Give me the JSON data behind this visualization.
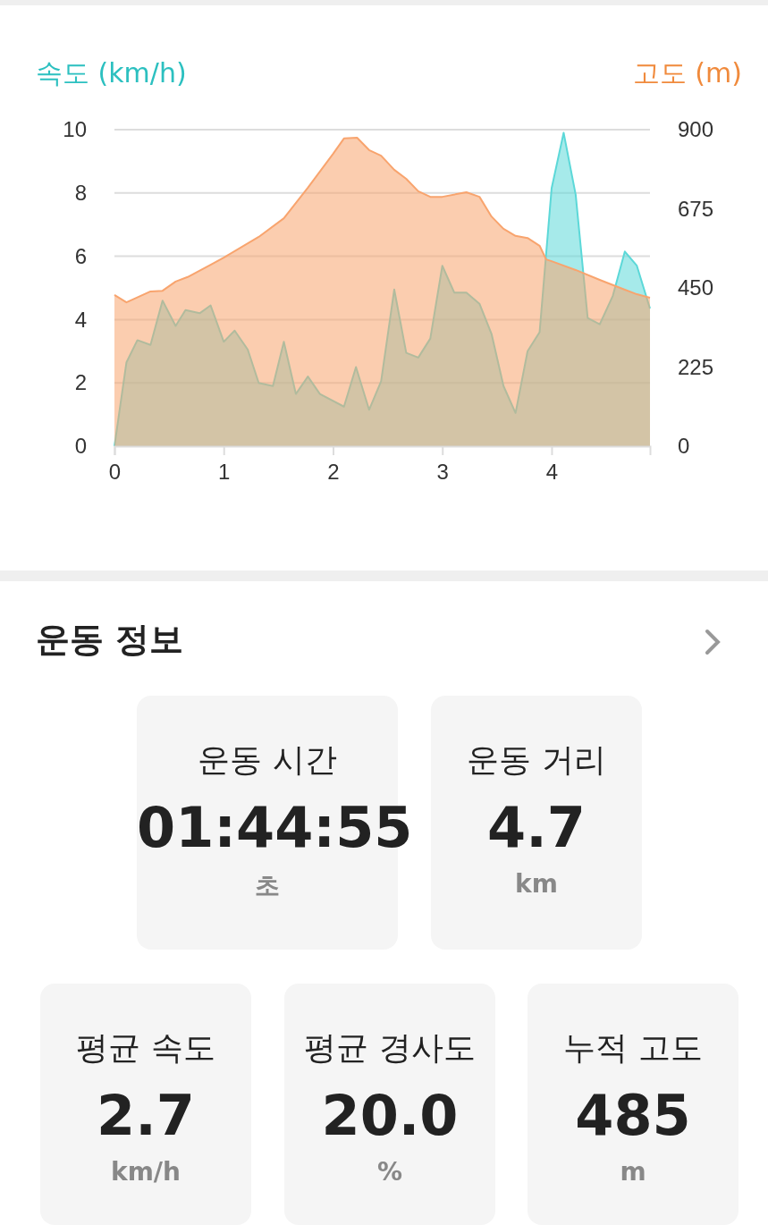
{
  "chart_data": [
    {
      "type": "area",
      "ylabel": "속도 (km/h)",
      "y2label": "고도 (m)",
      "xlim": [
        0,
        4.9
      ],
      "xticks": [
        0,
        1,
        2,
        3,
        4
      ],
      "ylim": [
        0,
        10
      ],
      "yticks": [
        0,
        2,
        4,
        6,
        8,
        10
      ],
      "y2lim": [
        0,
        900
      ],
      "y2ticks": [
        0,
        225,
        450,
        675,
        900
      ],
      "grid": "y",
      "marker": "none",
      "line_style": "solid",
      "series": [
        {
          "color": "#f8a46e",
          "axis": "y2",
          "x": [
            0,
            0.11,
            0.33,
            0.44,
            0.56,
            0.67,
            0.88,
            1.0,
            1.32,
            1.55,
            1.77,
            2.0,
            2.1,
            2.22,
            2.33,
            2.44,
            2.56,
            2.67,
            2.78,
            2.89,
            3.0,
            3.22,
            3.34,
            3.45,
            3.56,
            3.67,
            3.78,
            3.89,
            3.95,
            4.0,
            4.22,
            4.44,
            4.67,
            4.78,
            4.9
          ],
          "values": [
            430,
            409,
            440,
            442,
            468,
            481,
            516,
            536,
            595,
            648,
            735,
            831,
            875,
            877,
            842,
            826,
            786,
            760,
            725,
            709,
            709,
            722,
            709,
            653,
            618,
            598,
            592,
            570,
            531,
            526,
            501,
            473,
            445,
            432,
            422
          ]
        },
        {
          "color": "#5cd8d8",
          "axis": "y",
          "x": [
            0,
            0.11,
            0.21,
            0.33,
            0.44,
            0.56,
            0.65,
            0.78,
            0.88,
            1.0,
            1.1,
            1.22,
            1.32,
            1.45,
            1.55,
            1.66,
            1.77,
            1.88,
            2.1,
            2.21,
            2.33,
            2.44,
            2.56,
            2.67,
            2.78,
            2.89,
            3.0,
            3.11,
            3.22,
            3.34,
            3.45,
            3.56,
            3.67,
            3.78,
            3.89,
            4.0,
            4.11,
            4.22,
            4.33,
            4.44,
            4.56,
            4.67,
            4.78,
            4.9
          ],
          "values": [
            0,
            2.65,
            3.35,
            3.2,
            4.6,
            3.8,
            4.3,
            4.2,
            4.45,
            3.3,
            3.65,
            3.05,
            2.0,
            1.9,
            3.3,
            1.65,
            2.2,
            1.65,
            1.25,
            2.5,
            1.15,
            2.05,
            4.95,
            2.95,
            2.8,
            3.4,
            5.7,
            4.85,
            4.85,
            4.5,
            3.55,
            1.9,
            1.05,
            3.0,
            3.6,
            8.15,
            9.9,
            7.95,
            4.05,
            3.85,
            4.75,
            6.15,
            5.7,
            4.35
          ]
        }
      ]
    },
    {
      "type": "other",
      "title": "운동 정보",
      "annotations": [
        "운동 시간",
        "01:44:55",
        "초",
        "운동 거리",
        "4.7",
        "km",
        "평균 속도",
        "2.7",
        "km/h",
        "평균 경사도",
        "20.0",
        "%",
        "누적 고도",
        "485",
        "m"
      ]
    }
  ]
}
